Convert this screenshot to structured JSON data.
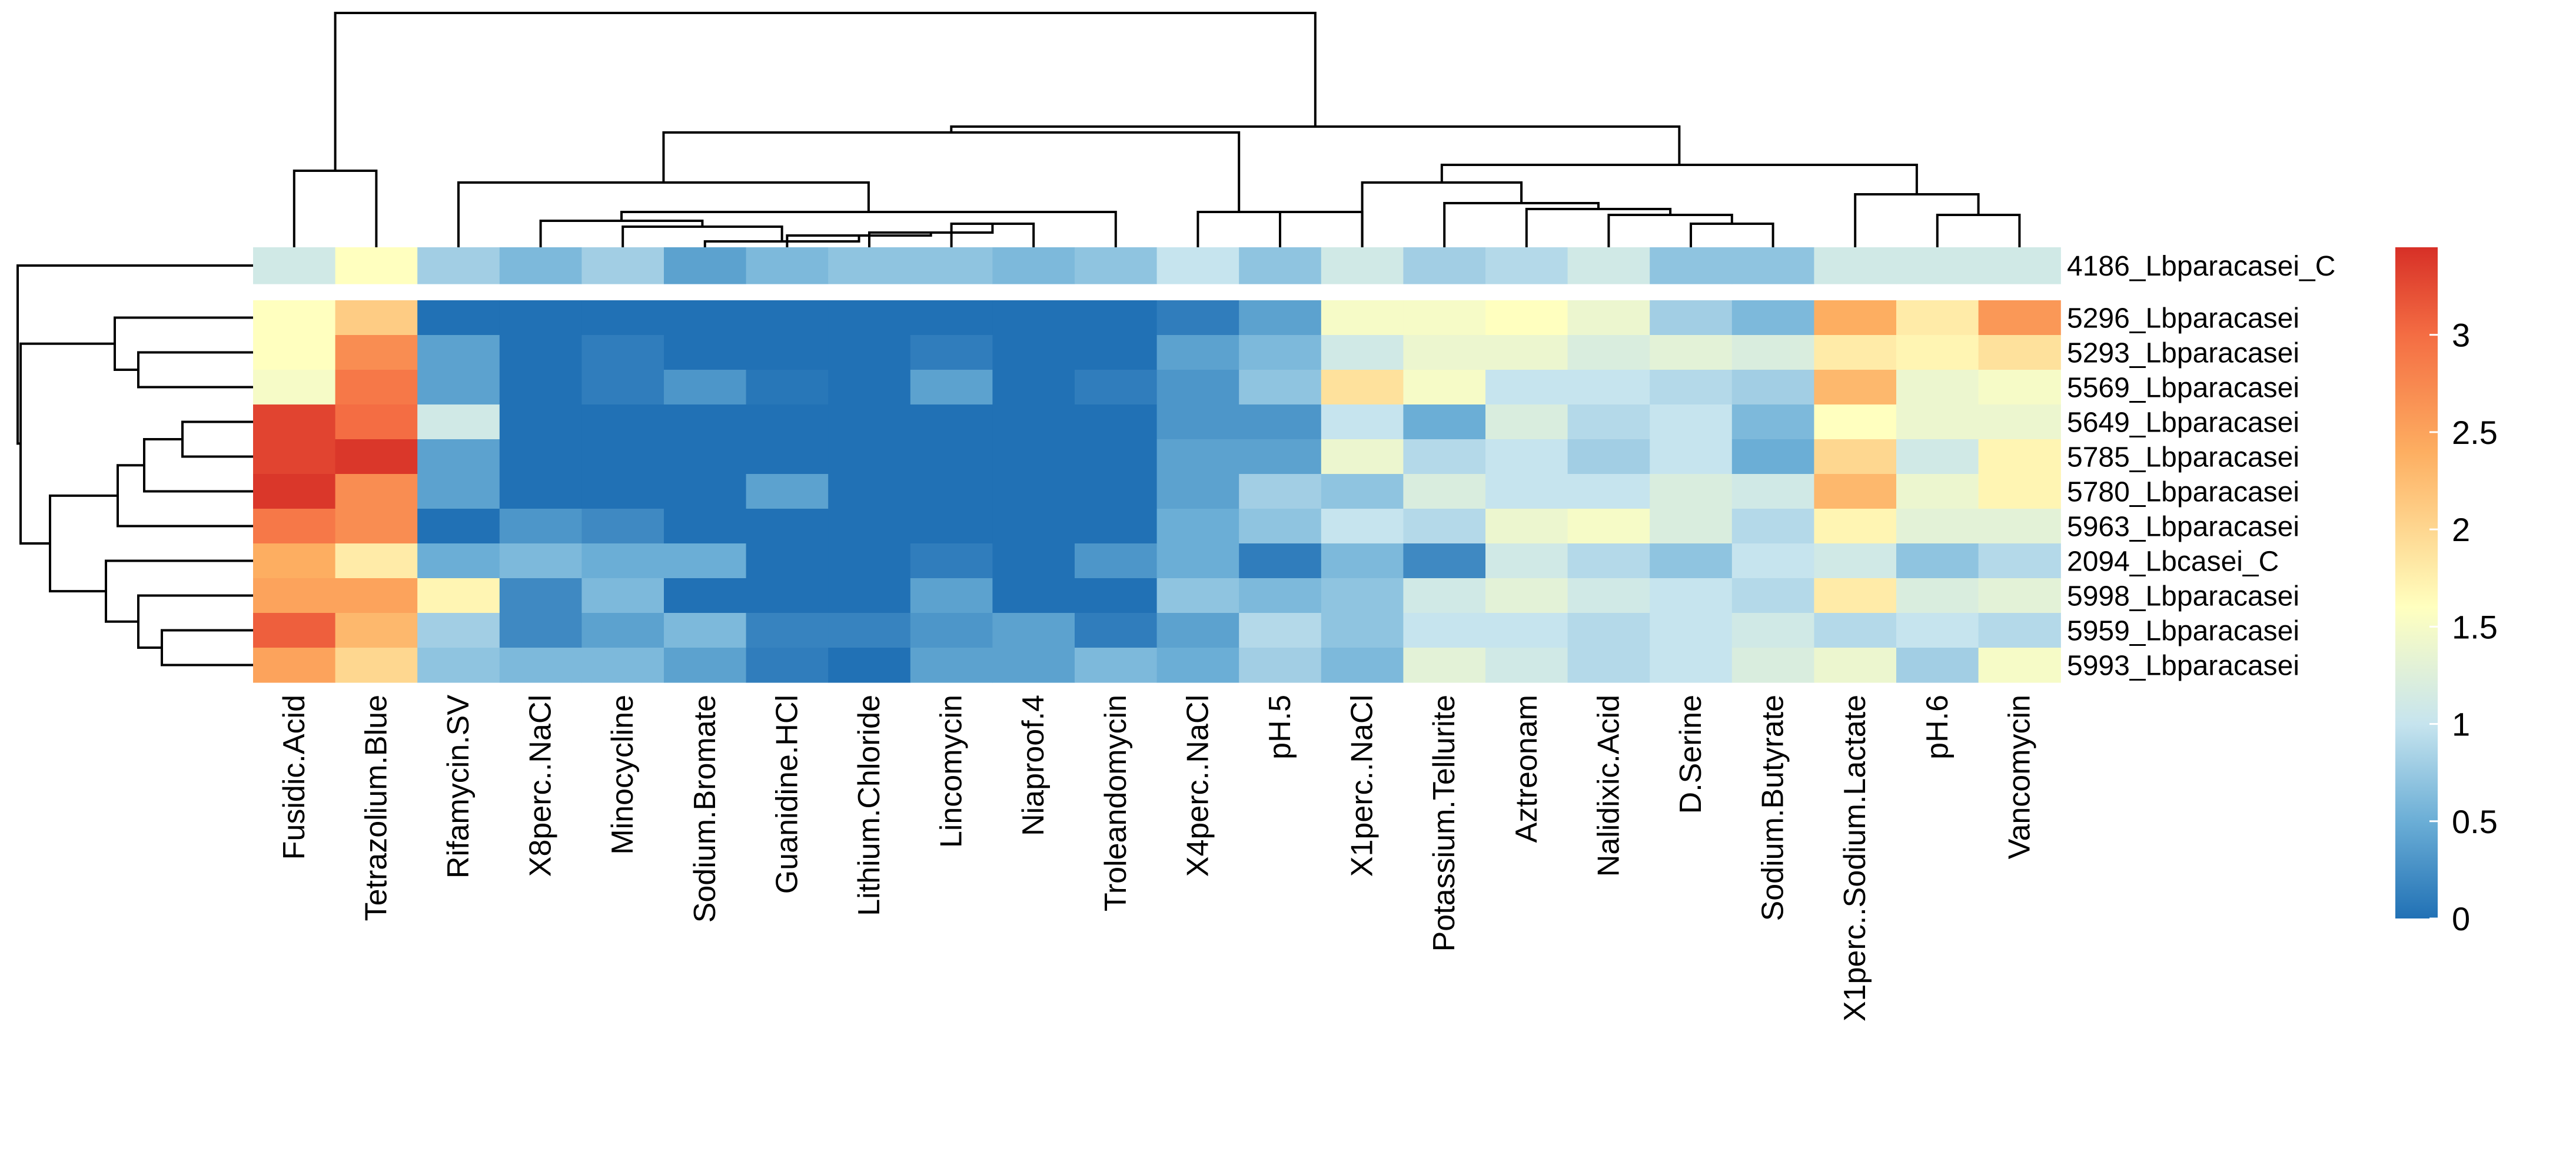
{
  "chart_data": {
    "type": "heatmap",
    "columns": [
      "Fusidic.Acid",
      "Tetrazolium.Blue",
      "Rifamycin.SV",
      "X8perc..NaCl",
      "Minocycline",
      "Sodium.Bromate",
      "Guanidine.HCl",
      "Lithium.Chloride",
      "Lincomycin",
      "Niaproof.4",
      "Troleandomycin",
      "X4perc..NaCl",
      "pH.5",
      "X1perc..NaCl",
      "Potassium.Tellurite",
      "Aztreonam",
      "Nalidixic.Acid",
      "D.Serine",
      "Sodium.Butyrate",
      "X1perc..Sodium.Lactate",
      "pH.6",
      "Vancomycin"
    ],
    "rows": [
      "4186_Lbparacasei_C",
      "5296_Lbparacasei",
      "5293_Lbparacasei",
      "5569_Lbparacasei",
      "5649_Lbparacasei",
      "5785_Lbparacasei",
      "5780_Lbparacasei",
      "5963_Lbparacasei",
      "2094_Lbcasei_C",
      "5998_Lbparacasei",
      "5959_Lbparacasei",
      "5993_Lbparacasei"
    ],
    "values": [
      [
        1.1,
        1.6,
        0.8,
        0.6,
        0.8,
        0.4,
        0.6,
        0.7,
        0.7,
        0.6,
        0.7,
        1.0,
        0.7,
        1.1,
        0.8,
        0.9,
        1.1,
        0.7,
        0.7,
        1.1,
        1.1,
        1.1
      ],
      [
        1.6,
        2.1,
        0.0,
        0.0,
        0.0,
        0.0,
        0.0,
        0.0,
        0.0,
        0.0,
        0.0,
        0.1,
        0.4,
        1.5,
        1.5,
        1.6,
        1.4,
        0.8,
        0.6,
        2.4,
        1.8,
        2.6
      ],
      [
        1.6,
        2.7,
        0.4,
        0.0,
        0.1,
        0.0,
        0.0,
        0.0,
        0.1,
        0.0,
        0.0,
        0.4,
        0.6,
        1.1,
        1.4,
        1.4,
        1.2,
        1.3,
        1.2,
        1.8,
        1.7,
        1.9
      ],
      [
        1.5,
        2.9,
        0.4,
        0.0,
        0.1,
        0.3,
        0.05,
        0.0,
        0.4,
        0.0,
        0.1,
        0.3,
        0.7,
        1.9,
        1.5,
        1.0,
        1.0,
        0.9,
        0.8,
        2.3,
        1.4,
        1.5
      ],
      [
        3.3,
        3.0,
        1.1,
        0.0,
        0.0,
        0.0,
        0.0,
        0.0,
        0.0,
        0.0,
        0.0,
        0.3,
        0.3,
        1.0,
        0.5,
        1.2,
        0.9,
        1.0,
        0.6,
        1.6,
        1.4,
        1.4
      ],
      [
        3.3,
        3.4,
        0.4,
        0.0,
        0.0,
        0.0,
        0.0,
        0.0,
        0.0,
        0.0,
        0.0,
        0.4,
        0.4,
        1.4,
        0.9,
        1.0,
        0.8,
        1.0,
        0.5,
        2.0,
        1.1,
        1.7
      ],
      [
        3.4,
        2.7,
        0.4,
        0.0,
        0.0,
        0.0,
        0.4,
        0.0,
        0.0,
        0.0,
        0.0,
        0.4,
        0.8,
        0.7,
        1.2,
        1.0,
        1.0,
        1.2,
        1.1,
        2.3,
        1.4,
        1.7
      ],
      [
        2.9,
        2.7,
        0.0,
        0.3,
        0.2,
        0.0,
        0.0,
        0.0,
        0.0,
        0.0,
        0.0,
        0.5,
        0.7,
        1.0,
        0.9,
        1.4,
        1.5,
        1.2,
        0.9,
        1.7,
        1.3,
        1.3
      ],
      [
        2.4,
        1.8,
        0.5,
        0.6,
        0.5,
        0.5,
        0.0,
        0.0,
        0.1,
        0.0,
        0.3,
        0.5,
        0.1,
        0.6,
        0.2,
        1.1,
        0.9,
        0.7,
        1.0,
        1.1,
        0.7,
        0.9
      ],
      [
        2.5,
        2.5,
        1.7,
        0.2,
        0.6,
        0.0,
        0.0,
        0.0,
        0.4,
        0.0,
        0.0,
        0.7,
        0.6,
        0.7,
        1.1,
        1.3,
        1.1,
        1.0,
        0.9,
        1.8,
        1.2,
        1.3
      ],
      [
        3.1,
        2.3,
        0.8,
        0.2,
        0.4,
        0.6,
        0.15,
        0.15,
        0.3,
        0.4,
        0.1,
        0.4,
        0.9,
        0.7,
        1.0,
        1.0,
        0.9,
        1.0,
        1.1,
        0.9,
        1.0,
        0.9
      ],
      [
        2.5,
        2.0,
        0.7,
        0.6,
        0.6,
        0.4,
        0.1,
        0.0,
        0.4,
        0.4,
        0.6,
        0.5,
        0.8,
        0.6,
        1.3,
        1.1,
        0.9,
        1.0,
        1.2,
        1.4,
        0.8,
        1.5
      ]
    ],
    "row_gap_after_index": 0,
    "colorbar": {
      "min": 0,
      "max": 3.45,
      "ticks": [
        0,
        0.5,
        1,
        1.5,
        2,
        2.5,
        3
      ],
      "tick_labels": [
        "0",
        "0.5",
        "1",
        "1.5",
        "2",
        "2.5",
        "3"
      ],
      "stops": [
        "#2171b5",
        "#6baed6",
        "#c6e4ee",
        "#ffffbf",
        "#fdae61",
        "#f46d43",
        "#d73027"
      ]
    },
    "column_dendrogram": [
      [
        12,
        13
      ],
      [
        20,
        21
      ],
      [
        1,
        2
      ],
      [
        8,
        9
      ],
      [
        16,
        17
      ],
      [
        15,
        16
      ],
      [
        18,
        19
      ],
      [
        4,
        5
      ],
      [
        17,
        18
      ],
      [
        6,
        7
      ],
      [
        14,
        15
      ],
      [
        19,
        20
      ],
      [
        3,
        4
      ],
      [
        5,
        6
      ],
      [
        11,
        12
      ],
      [
        2,
        3
      ],
      [
        1,
        2
      ],
      [
        10,
        11
      ],
      [
        1,
        2
      ],
      [
        1,
        2
      ],
      [
        1,
        2
      ]
    ],
    "row_dendrogram": [
      [
        2,
        3
      ],
      [
        5,
        6
      ],
      [
        8,
        9
      ],
      [
        10,
        11
      ],
      [
        1,
        2
      ],
      [
        4,
        5
      ],
      [
        7,
        8
      ],
      [
        6,
        7
      ],
      [
        3,
        4
      ],
      [
        2,
        3
      ],
      [
        1,
        2
      ]
    ]
  }
}
